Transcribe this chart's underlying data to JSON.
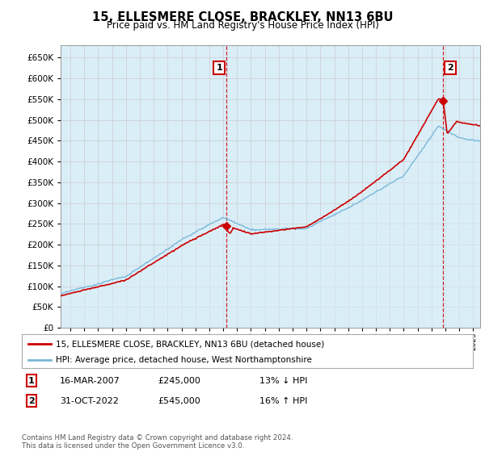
{
  "title": "15, ELLESMERE CLOSE, BRACKLEY, NN13 6BU",
  "subtitle": "Price paid vs. HM Land Registry's House Price Index (HPI)",
  "legend_line1": "15, ELLESMERE CLOSE, BRACKLEY, NN13 6BU (detached house)",
  "legend_line2": "HPI: Average price, detached house, West Northamptonshire",
  "table_row1": [
    "1",
    "16-MAR-2007",
    "£245,000",
    "13% ↓ HPI"
  ],
  "table_row2": [
    "2",
    "31-OCT-2022",
    "£545,000",
    "16% ↑ HPI"
  ],
  "footnote": "Contains HM Land Registry data © Crown copyright and database right 2024.\nThis data is licensed under the Open Government Licence v3.0.",
  "sale1_year": 2007.21,
  "sale1_price": 245000,
  "sale2_year": 2022.83,
  "sale2_price": 545000,
  "hpi_color": "#7ab8d9",
  "hpi_fill_color": "#daeef8",
  "price_color": "#cc0000",
  "vline_color": "#cc0000",
  "grid_color": "#cccccc",
  "background_color": "#ffffff",
  "plot_bg_color": "#daeef8",
  "ylim": [
    0,
    680000
  ],
  "xlim_start": 1995.3,
  "xlim_end": 2025.5
}
